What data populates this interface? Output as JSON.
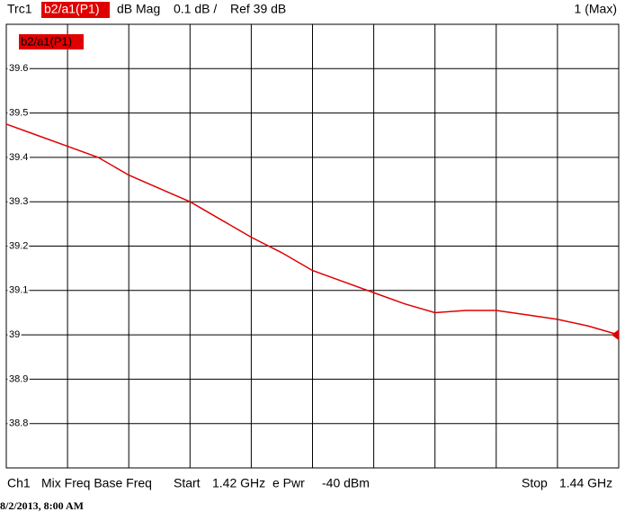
{
  "header": {
    "trace": "Trc1",
    "measurement": "b2/a1(P1)",
    "format": "dB Mag",
    "scale": "0.1 dB /",
    "reference": "Ref 39 dB",
    "marker": "1 (Max)"
  },
  "chart_data": {
    "type": "line",
    "x": [
      1.42,
      1.421,
      1.422,
      1.423,
      1.424,
      1.425,
      1.426,
      1.427,
      1.428,
      1.429,
      1.43,
      1.431,
      1.432,
      1.433,
      1.434,
      1.435,
      1.436,
      1.437,
      1.438,
      1.439,
      1.44
    ],
    "series": [
      {
        "name": "b2/a1(P1)",
        "color": "#e00000",
        "values": [
          39.475,
          39.45,
          39.425,
          39.4,
          39.36,
          39.33,
          39.3,
          39.26,
          39.22,
          39.185,
          39.145,
          39.12,
          39.095,
          39.07,
          39.05,
          39.055,
          39.055,
          39.045,
          39.035,
          39.02,
          39.0
        ]
      }
    ],
    "xlim": [
      1.42,
      1.44
    ],
    "xticks": [
      1.422,
      1.424,
      1.426,
      1.428,
      1.43,
      1.432,
      1.434,
      1.436,
      1.438
    ],
    "ylim": [
      38.7,
      39.7
    ],
    "yticks": [
      38.8,
      38.9,
      39.0,
      39.1,
      39.2,
      39.3,
      39.4,
      39.5,
      39.6
    ],
    "grid": true
  },
  "footer": {
    "channel": "Ch1",
    "sweep": "Mix Freq Base Freq",
    "start_label": "Start",
    "start": "1.42 GHz",
    "power_label": "e Pwr",
    "power": "-40 dBm",
    "stop_label": "Stop",
    "stop": "1.44 GHz"
  },
  "timestamp": "8/2/2013, 8:00 AM"
}
